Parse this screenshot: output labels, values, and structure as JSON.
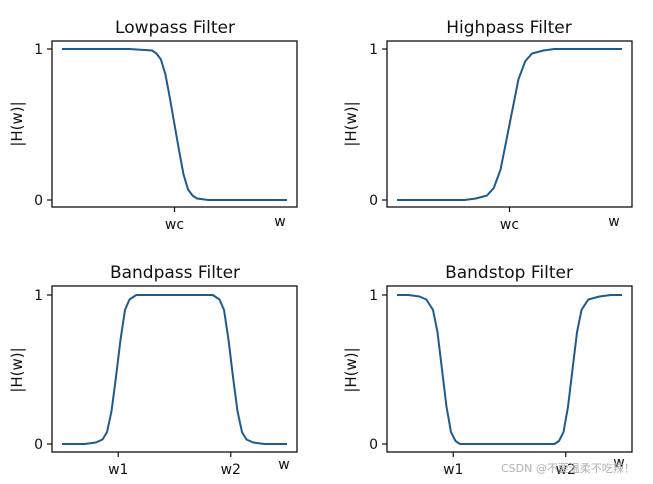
{
  "watermark": "CSDN @不要温柔不吃辣！",
  "chart_data": [
    {
      "type": "line",
      "title": "Lowpass Filter",
      "xlabel": "w",
      "ylabel": "|H(w)|",
      "ylim": [
        0,
        1
      ],
      "xlim": [
        0,
        1
      ],
      "yticks": [
        0,
        1
      ],
      "xticks": [
        {
          "value": 0.5,
          "label": "wc"
        }
      ],
      "color": "#1f5a8c",
      "series": [
        {
          "x": [
            0.0,
            0.1,
            0.2,
            0.3,
            0.4,
            0.42,
            0.44,
            0.46,
            0.48,
            0.5,
            0.52,
            0.54,
            0.56,
            0.58,
            0.6,
            0.65,
            0.7,
            0.8,
            0.9,
            1.0
          ],
          "y": [
            1.0,
            1.0,
            1.0,
            1.0,
            0.99,
            0.97,
            0.93,
            0.83,
            0.67,
            0.5,
            0.33,
            0.17,
            0.07,
            0.03,
            0.01,
            0.0,
            0.0,
            0.0,
            0.0,
            0.0
          ]
        }
      ]
    },
    {
      "type": "line",
      "title": "Highpass Filter",
      "xlabel": "w",
      "ylabel": "|H(w)|",
      "ylim": [
        0,
        1
      ],
      "xlim": [
        0,
        1
      ],
      "yticks": [
        0,
        1
      ],
      "xticks": [
        {
          "value": 0.5,
          "label": "wc"
        }
      ],
      "color": "#1f5a8c",
      "series": [
        {
          "x": [
            0.0,
            0.1,
            0.2,
            0.3,
            0.35,
            0.4,
            0.43,
            0.46,
            0.48,
            0.5,
            0.52,
            0.54,
            0.57,
            0.6,
            0.65,
            0.7,
            0.8,
            0.9,
            1.0
          ],
          "y": [
            0.0,
            0.0,
            0.0,
            0.0,
            0.01,
            0.03,
            0.08,
            0.2,
            0.35,
            0.5,
            0.65,
            0.8,
            0.92,
            0.97,
            0.99,
            1.0,
            1.0,
            1.0,
            1.0
          ]
        }
      ]
    },
    {
      "type": "line",
      "title": "Bandpass Filter",
      "xlabel": "w",
      "ylabel": "|H(w)|",
      "ylim": [
        0,
        1
      ],
      "xlim": [
        0,
        1
      ],
      "yticks": [
        0,
        1
      ],
      "xticks": [
        {
          "value": 0.25,
          "label": "w1"
        },
        {
          "value": 0.75,
          "label": "w2"
        }
      ],
      "color": "#1f5a8c",
      "series": [
        {
          "x": [
            0.0,
            0.1,
            0.15,
            0.18,
            0.2,
            0.22,
            0.24,
            0.26,
            0.28,
            0.3,
            0.33,
            0.4,
            0.5,
            0.6,
            0.67,
            0.7,
            0.72,
            0.74,
            0.76,
            0.78,
            0.8,
            0.82,
            0.85,
            0.9,
            1.0
          ],
          "y": [
            0.0,
            0.0,
            0.01,
            0.03,
            0.08,
            0.22,
            0.45,
            0.7,
            0.9,
            0.97,
            1.0,
            1.0,
            1.0,
            1.0,
            1.0,
            0.97,
            0.9,
            0.7,
            0.45,
            0.22,
            0.08,
            0.03,
            0.01,
            0.0,
            0.0
          ]
        }
      ]
    },
    {
      "type": "line",
      "title": "Bandstop Filter",
      "xlabel": "w",
      "ylabel": "|H(w)|",
      "ylim": [
        0,
        1
      ],
      "xlim": [
        0,
        1
      ],
      "yticks": [
        0,
        1
      ],
      "xticks": [
        {
          "value": 0.25,
          "label": "w1"
        },
        {
          "value": 0.75,
          "label": "w2"
        }
      ],
      "color": "#1f5a8c",
      "series": [
        {
          "x": [
            0.0,
            0.05,
            0.1,
            0.13,
            0.16,
            0.18,
            0.2,
            0.22,
            0.24,
            0.26,
            0.28,
            0.3,
            0.4,
            0.5,
            0.6,
            0.7,
            0.72,
            0.74,
            0.76,
            0.78,
            0.8,
            0.82,
            0.85,
            0.9,
            0.95,
            1.0
          ],
          "y": [
            1.0,
            1.0,
            0.99,
            0.97,
            0.9,
            0.75,
            0.5,
            0.25,
            0.08,
            0.02,
            0.0,
            0.0,
            0.0,
            0.0,
            0.0,
            0.0,
            0.02,
            0.08,
            0.25,
            0.5,
            0.75,
            0.9,
            0.97,
            0.99,
            1.0,
            1.0
          ]
        }
      ]
    }
  ]
}
